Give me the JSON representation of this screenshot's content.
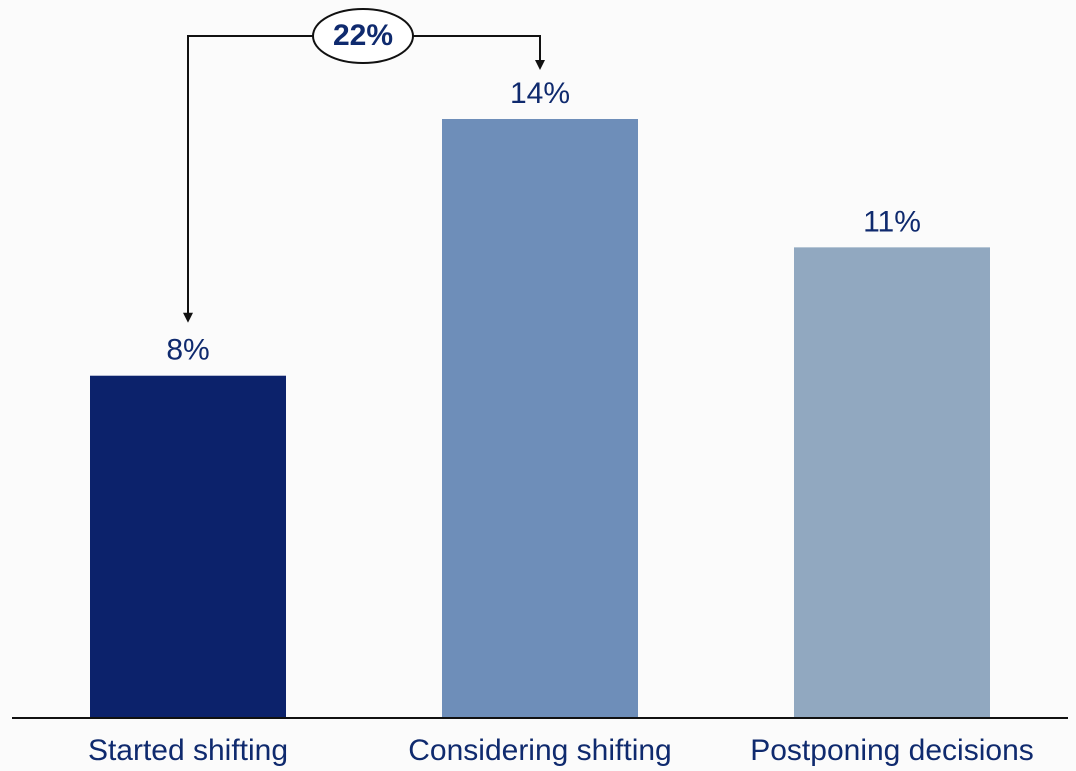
{
  "chart_data": {
    "type": "bar",
    "categories": [
      "Started shifting",
      "Considering shifting",
      "Postponing decisions"
    ],
    "values": [
      8,
      14,
      11
    ],
    "value_labels": [
      "8%",
      "14%",
      "11%"
    ],
    "colors": [
      "#0c226b",
      "#6e8eb9",
      "#91a8c0"
    ],
    "ylim": [
      0,
      14
    ],
    "grid": false,
    "legend": "none",
    "annotation": {
      "text": "22%",
      "from_category": "Considering shifting",
      "to_category": "Started shifting"
    }
  }
}
